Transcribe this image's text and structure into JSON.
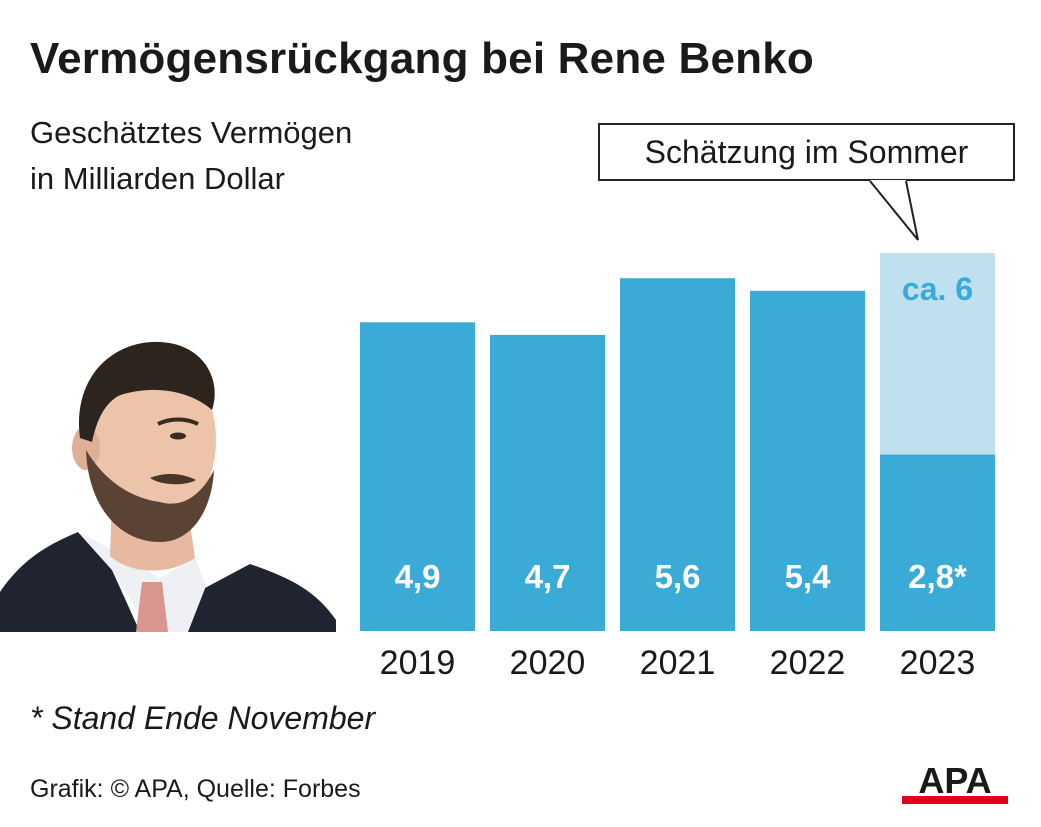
{
  "title": "Vermögensrückgang bei Rene Benko",
  "subtitle_line1": "Geschätztes Vermögen",
  "subtitle_line2": "in Milliarden Dollar",
  "callout": "Schätzung im Sommer",
  "footnote": "* Stand Ende November",
  "source": "Grafik: © APA, Quelle: Forbes",
  "logo_text": "APA",
  "colors": {
    "bar": "#3aaad6",
    "bar_estimate": "#bfe0ef",
    "estimate_label": "#3aaad6",
    "value_label": "#ffffff",
    "logo_stripe": "#e2001a"
  },
  "chart_data": {
    "type": "bar",
    "categories": [
      "2019",
      "2020",
      "2021",
      "2022",
      "2023"
    ],
    "values": [
      4.9,
      4.7,
      5.6,
      5.4,
      2.8
    ],
    "value_labels": [
      "4,9",
      "4,7",
      "5,6",
      "5,4",
      "2,8*"
    ],
    "estimate": {
      "category": "2023",
      "value": 6,
      "label": "ca. 6"
    },
    "ylim": [
      0,
      6
    ],
    "grid": false,
    "legend": "none"
  }
}
